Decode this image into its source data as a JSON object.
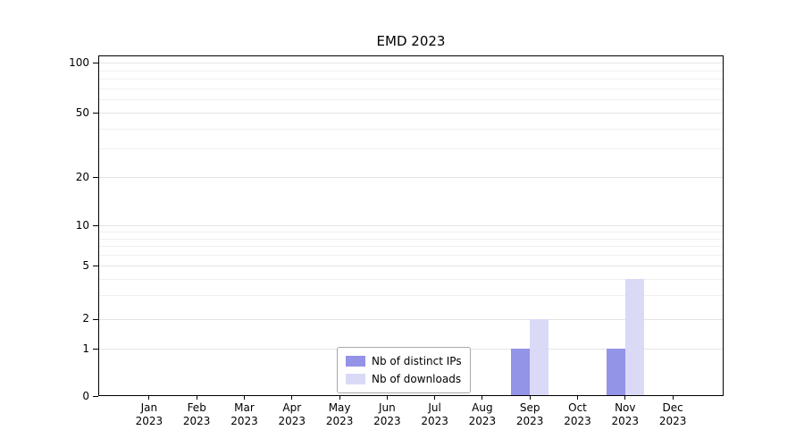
{
  "chart": {
    "title": "EMD 2023"
  },
  "chart_data": {
    "type": "bar",
    "title": "EMD 2023",
    "categories": [
      "Jan",
      "Feb",
      "Mar",
      "Apr",
      "May",
      "Jun",
      "Jul",
      "Aug",
      "Sep",
      "Oct",
      "Nov",
      "Dec"
    ],
    "category_year": "2023",
    "series": [
      {
        "name": "Nb of distinct IPs",
        "color": "#9393e8",
        "values": [
          0,
          0,
          0,
          0,
          0,
          0,
          0,
          0,
          1,
          0,
          1,
          0
        ]
      },
      {
        "name": "Nb of downloads",
        "color": "#dadaf7",
        "values": [
          0,
          0,
          0,
          0,
          0,
          0,
          0,
          0,
          2,
          0,
          4,
          0
        ]
      }
    ],
    "y_ticks": [
      0,
      1,
      2,
      5,
      10,
      20,
      50,
      100
    ],
    "y_minor_gridlines": [
      3,
      4,
      6,
      7,
      8,
      9,
      30,
      40,
      60,
      70,
      80,
      90
    ],
    "y_scale": "symlog",
    "ylim": [
      0,
      110
    ],
    "grid": true,
    "legend_position": "lower center",
    "xlabel": "",
    "ylabel": ""
  }
}
